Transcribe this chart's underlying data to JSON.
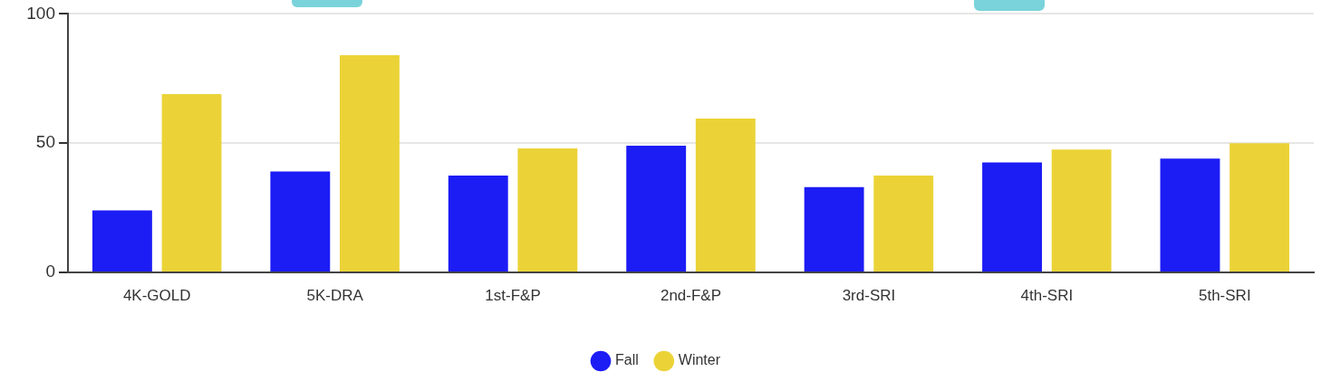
{
  "chart_data": {
    "type": "bar",
    "categories": [
      "4K-GOLD",
      "5K-DRA",
      "1st-F&P",
      "2nd-F&P",
      "3rd-SRI",
      "4th-SRI",
      "5th-SRI"
    ],
    "series": [
      {
        "name": "Fall",
        "color": "#1c1cf5",
        "values": [
          24,
          39,
          37.5,
          49,
          33,
          42.5,
          44
        ]
      },
      {
        "name": "Winter",
        "color": "#ebd337",
        "values": [
          69,
          84,
          48,
          59.5,
          37.5,
          47.5,
          50
        ]
      }
    ],
    "ylim": [
      0,
      100
    ],
    "yticks": [
      0,
      50,
      100
    ],
    "grid": "y",
    "legend": "bottom"
  }
}
